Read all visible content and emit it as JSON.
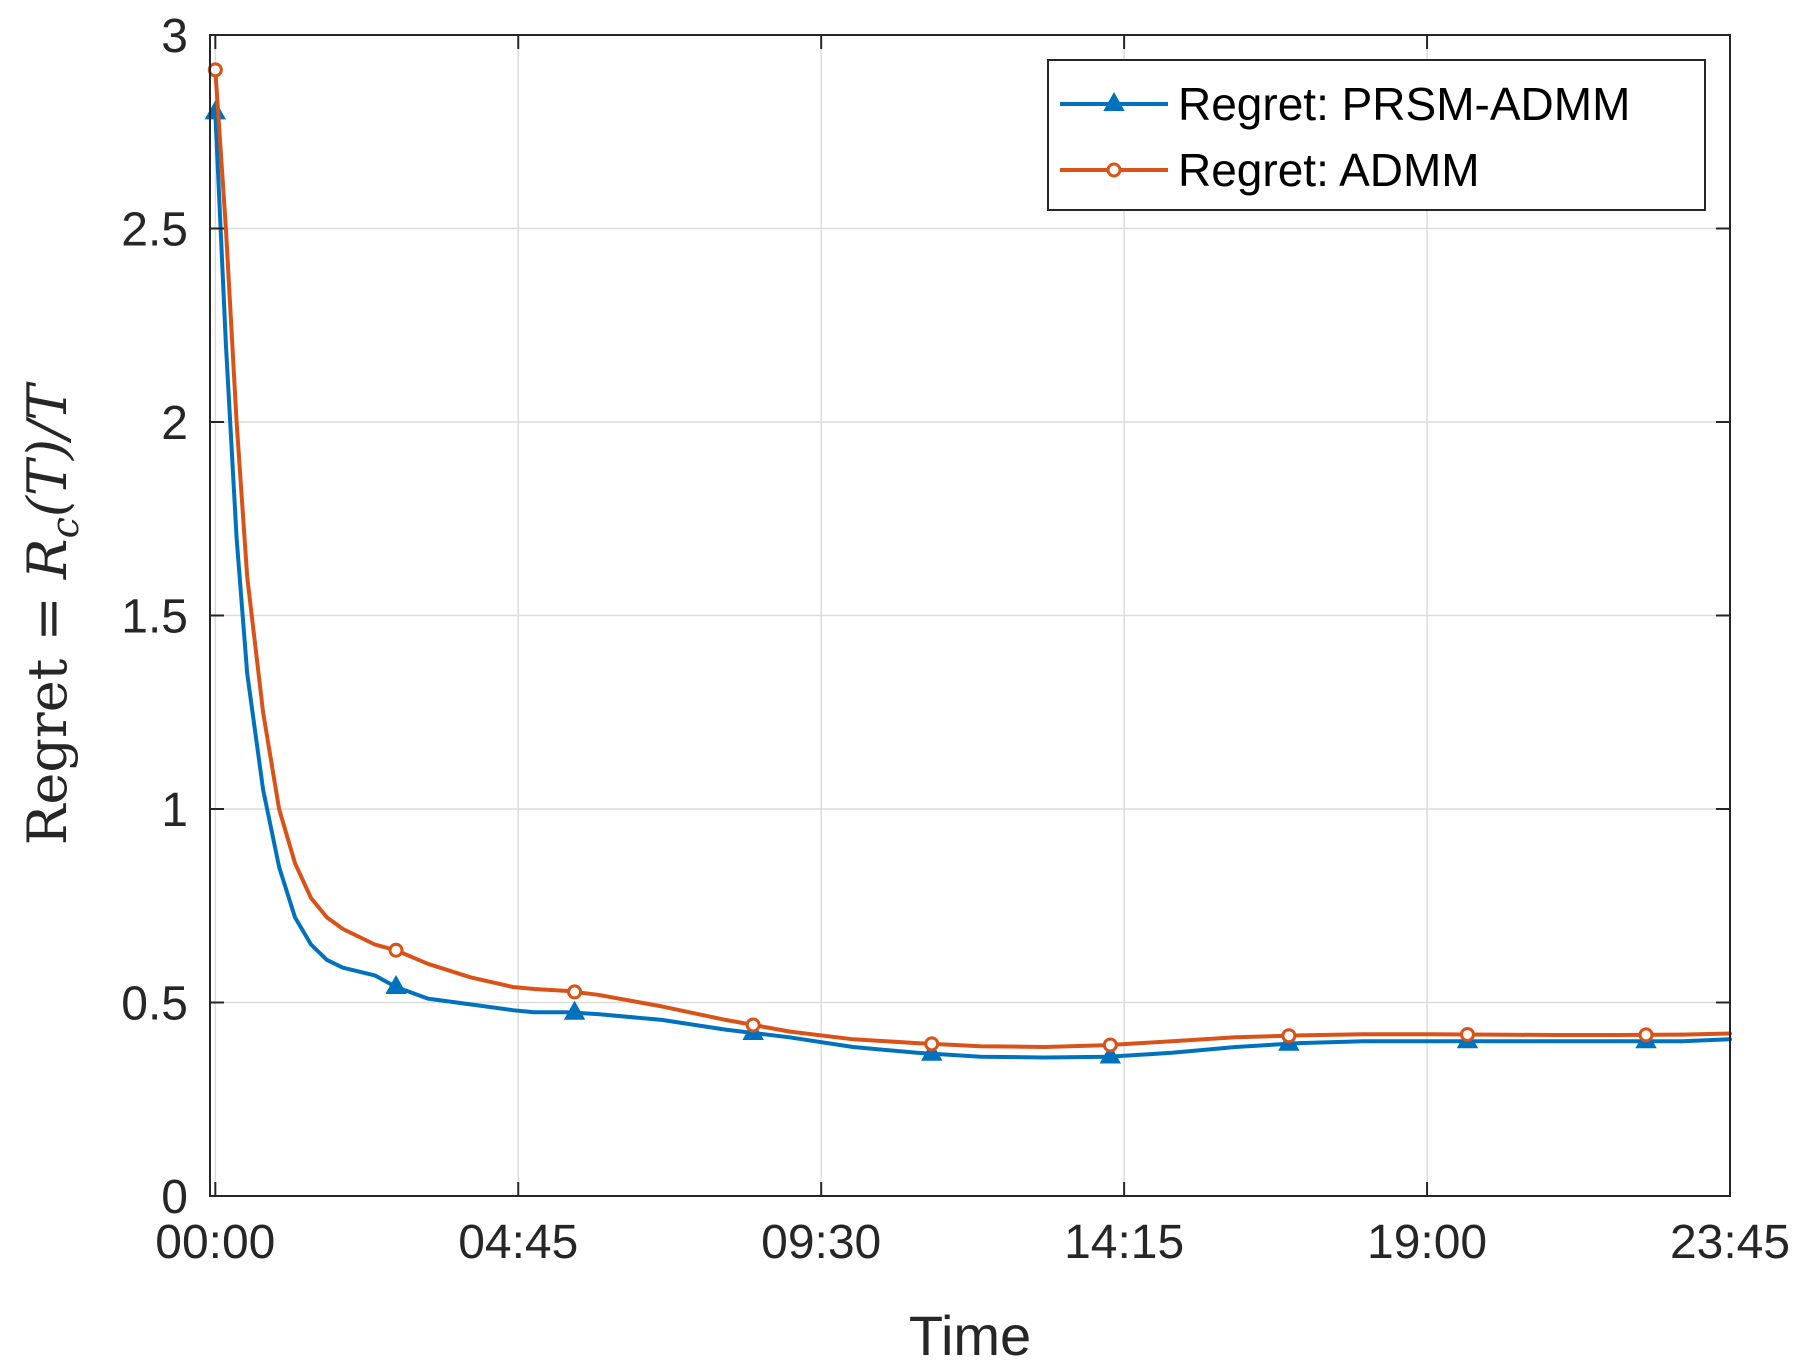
{
  "chart_data": {
    "type": "line",
    "title": "",
    "xlabel": "Time",
    "ylabel": {
      "main": "Regret = ",
      "R": "R",
      "sub": "c",
      "tail": "(T)/T"
    },
    "x_ticks": [
      "00:00",
      "04:45",
      "09:30",
      "14:15",
      "19:00",
      "23:45"
    ],
    "xlim_minutes": [
      -5,
      1425
    ],
    "y_ticks": [
      "0",
      "0.5",
      "1",
      "1.5",
      "2",
      "2.5",
      "3"
    ],
    "ylim": [
      0,
      3
    ],
    "grid": true,
    "legend_position": "top-right",
    "series": [
      {
        "name": "Regret: PRSM-ADMM",
        "color": "#0072BD",
        "marker": "triangle",
        "x": [
          0,
          10,
          20,
          30,
          45,
          60,
          75,
          90,
          105,
          120,
          150,
          170,
          200,
          240,
          280,
          300,
          330,
          360,
          420,
          480,
          540,
          600,
          660,
          720,
          780,
          840,
          900,
          960,
          1020,
          1080,
          1140,
          1200,
          1260,
          1320,
          1380,
          1425
        ],
        "y": [
          2.8,
          2.2,
          1.7,
          1.35,
          1.05,
          0.85,
          0.72,
          0.65,
          0.61,
          0.59,
          0.57,
          0.54,
          0.51,
          0.495,
          0.48,
          0.475,
          0.475,
          0.47,
          0.455,
          0.43,
          0.41,
          0.385,
          0.37,
          0.36,
          0.358,
          0.36,
          0.37,
          0.385,
          0.395,
          0.4,
          0.4,
          0.4,
          0.4,
          0.4,
          0.4,
          0.405
        ],
        "marker_x": [
          0,
          170,
          338,
          506,
          674,
          842,
          1010,
          1178,
          1346
        ]
      },
      {
        "name": "Regret: ADMM",
        "color": "#D95319",
        "marker": "circle",
        "x": [
          0,
          10,
          20,
          30,
          45,
          60,
          75,
          90,
          105,
          120,
          150,
          170,
          200,
          240,
          280,
          300,
          330,
          360,
          420,
          480,
          540,
          600,
          660,
          720,
          780,
          840,
          900,
          960,
          1020,
          1080,
          1140,
          1200,
          1260,
          1320,
          1380,
          1425
        ],
        "y": [
          2.91,
          2.5,
          2.0,
          1.6,
          1.25,
          1.0,
          0.86,
          0.77,
          0.72,
          0.69,
          0.65,
          0.635,
          0.6,
          0.565,
          0.54,
          0.535,
          0.53,
          0.52,
          0.49,
          0.455,
          0.425,
          0.405,
          0.395,
          0.387,
          0.385,
          0.39,
          0.4,
          0.41,
          0.415,
          0.418,
          0.418,
          0.417,
          0.416,
          0.416,
          0.417,
          0.42
        ],
        "marker_x": [
          0,
          170,
          338,
          506,
          674,
          842,
          1010,
          1178,
          1346
        ]
      }
    ]
  }
}
